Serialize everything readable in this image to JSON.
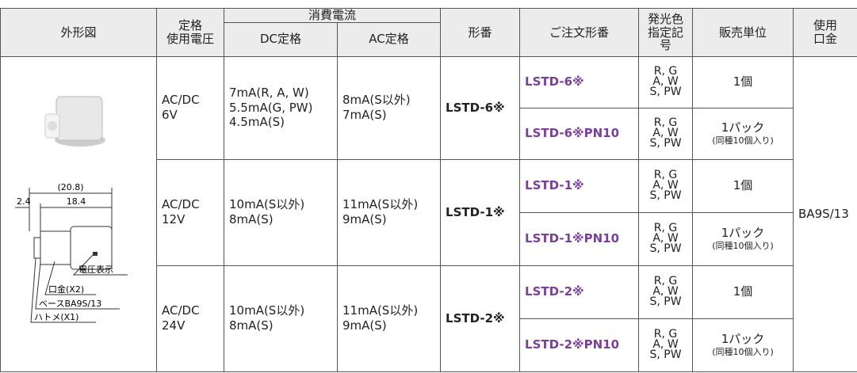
{
  "header": {
    "outline": "外形図",
    "rated_voltage": [
      "定格",
      "使用電圧"
    ],
    "current": "消費電流",
    "dc": "DC定格",
    "ac": "AC定格",
    "model": "形番",
    "order": "ご注文形番",
    "color": [
      "発光色",
      "指定記号"
    ],
    "unit": "販売単位",
    "base": [
      "使用",
      "口金"
    ]
  },
  "groups": [
    {
      "voltage": [
        "AC/DC",
        "6V"
      ],
      "dc": [
        "7mA(R, A, W)",
        "5.5mA(G, PW)",
        "4.5mA(S)"
      ],
      "ac": [
        "8mA(S以外)",
        "7mA(S)"
      ],
      "model": "LSTD-6※",
      "orders": [
        {
          "code": "LSTD-6※",
          "colors": [
            "R, G",
            "A, W",
            "S, PW"
          ],
          "unit": [
            "1個"
          ]
        },
        {
          "code": "LSTD-6※PN10",
          "colors": [
            "R, G",
            "A, W",
            "S, PW"
          ],
          "unit": [
            "1パック",
            "(同種10個入り)"
          ]
        }
      ]
    },
    {
      "voltage": [
        "AC/DC",
        "12V"
      ],
      "dc": [
        "10mA(S以外)",
        "8mA(S)"
      ],
      "ac": [
        "11mA(S以外)",
        "9mA(S)"
      ],
      "model": "LSTD-1※",
      "orders": [
        {
          "code": "LSTD-1※",
          "colors": [
            "R, G",
            "A, W",
            "S, PW"
          ],
          "unit": [
            "1個"
          ]
        },
        {
          "code": "LSTD-1※PN10",
          "colors": [
            "R, G",
            "A, W",
            "S, PW"
          ],
          "unit": [
            "1パック",
            "(同種10個入り)"
          ]
        }
      ]
    },
    {
      "voltage": [
        "AC/DC",
        "24V"
      ],
      "dc": [
        "10mA(S以外)",
        "8mA(S)"
      ],
      "ac": [
        "11mA(S以外)",
        "9mA(S)"
      ],
      "model": "LSTD-2※",
      "orders": [
        {
          "code": "LSTD-2※",
          "colors": [
            "R, G",
            "A, W",
            "S, PW"
          ],
          "unit": [
            "1個"
          ]
        },
        {
          "code": "LSTD-2※PN10",
          "colors": [
            "R, G",
            "A, W",
            "S, PW"
          ],
          "unit": [
            "1パック",
            "(同種10個入り)"
          ]
        }
      ]
    }
  ],
  "base_value": "BA9S/13",
  "figure": {
    "overall": "(20.8)",
    "length": "18.4",
    "offset": "2.4",
    "voltage_mark": "電圧表示",
    "cap": "口金(X2)",
    "base": "ベースBA9S/13",
    "eyelet": "ハトメ(X1)"
  }
}
